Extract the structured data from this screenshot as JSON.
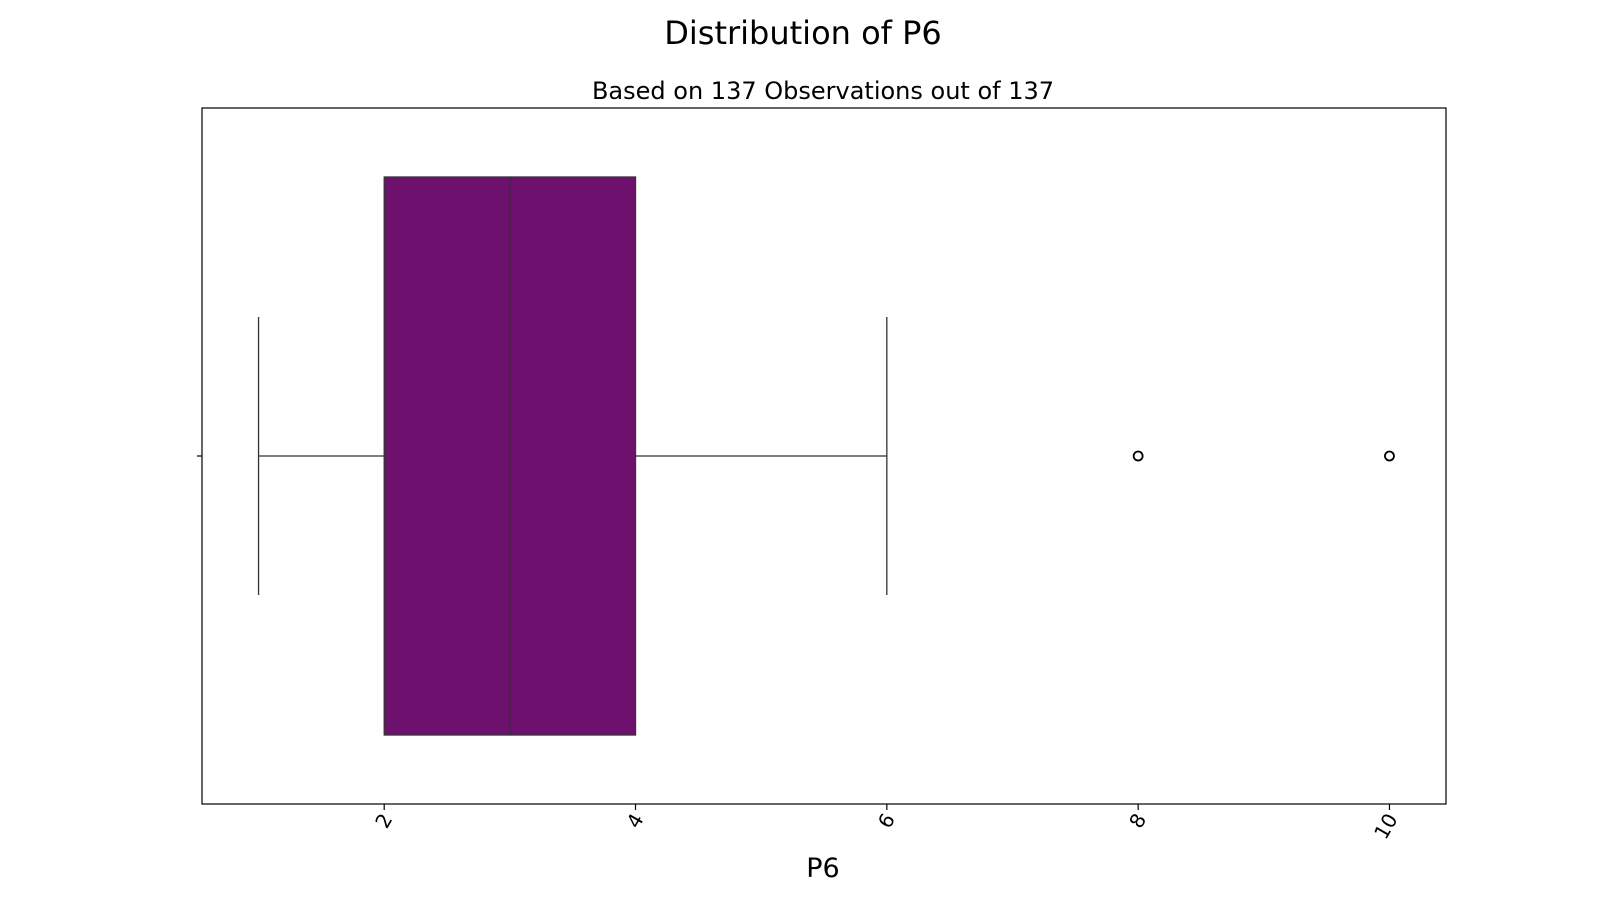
{
  "chart_data": {
    "type": "box",
    "title": "Distribution of P6",
    "subtitle": "Based on 137 Observations out of 137",
    "xlabel": "P6",
    "ylabel": "",
    "xlim": [
      0.55,
      10.45
    ],
    "xticks": [
      2,
      4,
      6,
      8,
      10
    ],
    "tick_label_rotation": -60,
    "grid": false,
    "orientation": "horizontal",
    "box": {
      "whisker_low": 1,
      "q1": 2,
      "median": 3,
      "q3": 4,
      "whisker_high": 6,
      "outliers": [
        8,
        10
      ]
    },
    "colors": {
      "box_fill": "#6e106e",
      "line": "#333333",
      "frame": "#000000"
    }
  }
}
